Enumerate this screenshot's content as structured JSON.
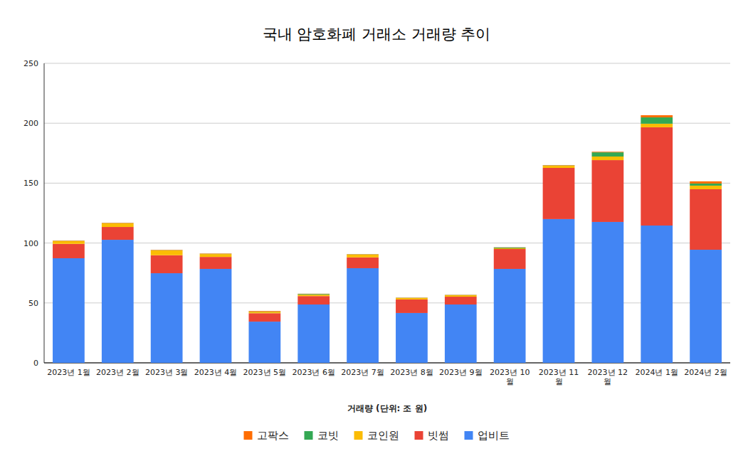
{
  "chart_data": {
    "type": "bar",
    "title": "국내 암호화폐 거래소 거래량 추이",
    "x_label": "거래량 (단위: 조 원)",
    "categories": [
      "2023년 1월",
      "2023년 2월",
      "2023년 3월",
      "2023년 4월",
      "2023년 5월",
      "2023년 6월",
      "2023년 7월",
      "2023년 8월",
      "2023년 9월",
      "2023년 10월",
      "2023년 11월",
      "2023년 12월",
      "2024년 1월",
      "2024년 2월"
    ],
    "series": [
      {
        "name": "업비트",
        "color": "#4285f4",
        "values": [
          87.3,
          102.7,
          74.8,
          78.4,
          34.4,
          48.7,
          79.0,
          41.6,
          48.7,
          78.4,
          120.0,
          117.6,
          114.6,
          94.4
        ]
      },
      {
        "name": "빗썸",
        "color": "#ea4335",
        "values": [
          12.0,
          10.7,
          15.0,
          10.0,
          7.0,
          7.0,
          9.0,
          11.3,
          6.5,
          16.6,
          42.7,
          51.6,
          82.0,
          50.5
        ]
      },
      {
        "name": "코인원",
        "color": "#fbbc04",
        "values": [
          2.3,
          3.0,
          4.0,
          2.4,
          1.2,
          1.2,
          2.4,
          1.2,
          1.2,
          0.6,
          1.8,
          3.0,
          3.0,
          3.0
        ]
      },
      {
        "name": "코빗",
        "color": "#34a853",
        "values": [
          0.2,
          0.2,
          0.2,
          0.2,
          0.2,
          0.6,
          0.2,
          0.2,
          0.2,
          0.6,
          0.3,
          3.5,
          5.3,
          1.8
        ]
      },
      {
        "name": "고팍스",
        "color": "#ff6d01",
        "values": [
          0.3,
          0.3,
          0.3,
          0.3,
          0.5,
          0.2,
          0.2,
          0.2,
          0.2,
          0.2,
          0.3,
          0.5,
          1.8,
          1.8
        ]
      }
    ],
    "ylim": [
      0,
      250
    ],
    "yticks": [
      0,
      50,
      100,
      150,
      200,
      250
    ],
    "grid": true,
    "stacked": true,
    "legend": "bottom"
  }
}
